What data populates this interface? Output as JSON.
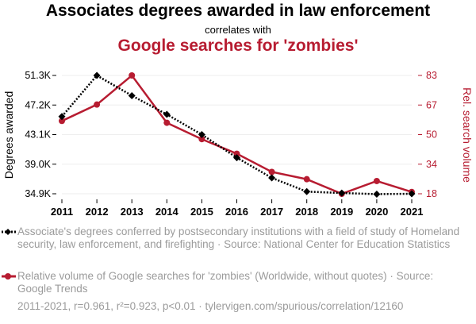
{
  "header": {
    "title": "Associates degrees awarded in law enforcement",
    "subtitle": "correlates with",
    "title2": "Google searches for 'zombies'"
  },
  "colors": {
    "series1": "#000000",
    "series2": "#b71c31",
    "muted": "#9b9b9b"
  },
  "chart_data": {
    "type": "line",
    "x": [
      2011,
      2012,
      2013,
      2014,
      2015,
      2016,
      2017,
      2018,
      2019,
      2020,
      2021
    ],
    "series": [
      {
        "name": "Associate's degrees conferred by postsecondary institutions with a field of study of Homeland security, law enforcement, and firefighting · Source: National Center for Education Statistics",
        "axis": "left",
        "values": [
          45600,
          51300,
          48500,
          45900,
          43100,
          39900,
          37100,
          35200,
          35000,
          34850,
          34900
        ]
      },
      {
        "name": "Relative volume of Google searches for 'zombies' (Worldwide, without quotes) · Source: Google Trends",
        "axis": "right",
        "values": [
          58,
          67,
          83,
          57,
          48,
          40,
          30,
          26,
          18,
          25,
          19
        ]
      }
    ],
    "ylabel_left": "Degrees awarded",
    "ylabel_right": "Rel. search volume",
    "yticks_left": [
      "34.9K",
      "39.0K",
      "43.1K",
      "47.2K",
      "51.3K"
    ],
    "yticks_right": [
      "18",
      "34",
      "50",
      "67",
      "83"
    ],
    "ylim_left": [
      34900,
      51300
    ],
    "ylim_right": [
      18,
      83
    ],
    "grid": true
  },
  "legend": {
    "item1": "Associate's degrees conferred by postsecondary institutions with a field of study of Homeland security, law enforcement, and firefighting · Source: National Center for Education Statistics",
    "item2": "Relative volume of Google searches for 'zombies' (Worldwide, without quotes) · Source: Google Trends"
  },
  "footer": "2011-2021, r=0.961, r²=0.923, p<0.01 · tylervigen.com/spurious/correlation/12160"
}
